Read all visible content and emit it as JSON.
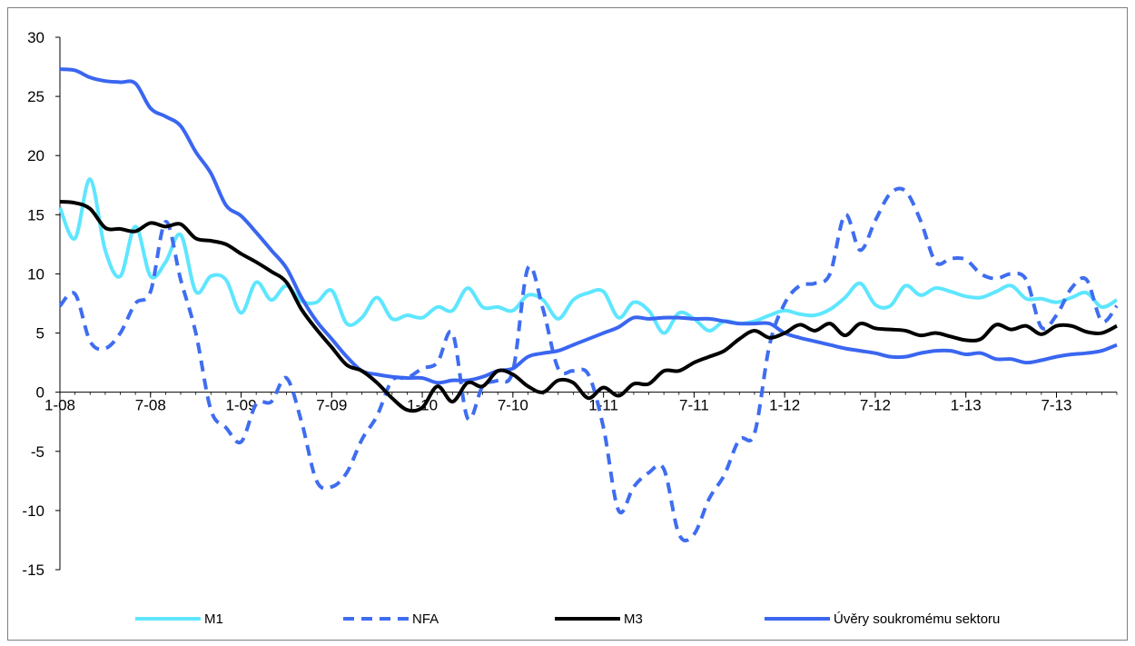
{
  "chart_data": {
    "type": "line",
    "title": "",
    "xlabel": "",
    "ylabel": "",
    "ylim": [
      -15,
      30
    ],
    "yticks": [
      -15,
      -10,
      -5,
      0,
      5,
      10,
      15,
      20,
      25,
      30
    ],
    "x_tick_labels": [
      "1-08",
      "7-08",
      "1-09",
      "7-09",
      "1-10",
      "7-10",
      "1-11",
      "7-11",
      "1-12",
      "7-12",
      "1-13",
      "7-13"
    ],
    "x_tick_index": [
      0,
      6,
      12,
      18,
      24,
      30,
      36,
      42,
      48,
      54,
      60,
      66
    ],
    "n_months": 71,
    "grid": false,
    "legend_position": "bottom",
    "series": [
      {
        "name": "M1",
        "color": "#5ee6ff",
        "dash": "solid",
        "values": [
          15.6,
          13.0,
          18.0,
          12.0,
          9.8,
          14.0,
          9.8,
          11.0,
          13.3,
          8.5,
          9.8,
          9.5,
          6.7,
          9.3,
          7.8,
          9.0,
          7.7,
          7.6,
          8.6,
          5.8,
          6.3,
          8.0,
          6.2,
          6.5,
          6.3,
          7.2,
          6.9,
          8.8,
          7.2,
          7.2,
          6.9,
          8.2,
          7.8,
          6.2,
          7.8,
          8.4,
          8.5,
          6.3,
          7.6,
          6.9,
          5.0,
          6.7,
          6.2,
          5.2,
          6.0,
          5.8,
          6.0,
          6.5,
          6.9,
          6.6,
          6.5,
          7.0,
          8.0,
          9.2,
          7.4,
          7.3,
          9.0,
          8.2,
          8.8,
          8.5,
          8.1,
          8.0,
          8.5,
          9.0,
          7.9,
          7.9,
          7.6,
          8.0,
          8.4,
          7.2,
          7.8
        ]
      },
      {
        "name": "NFA",
        "color": "#3f6df0",
        "dash": "dashed",
        "values": [
          7.3,
          8.3,
          4.3,
          3.7,
          5.0,
          7.5,
          8.5,
          14.4,
          9.5,
          5.0,
          -1.5,
          -3.0,
          -4.2,
          -1.0,
          -0.8,
          1.2,
          -2.5,
          -7.5,
          -8.0,
          -6.8,
          -4.0,
          -2.0,
          1.0,
          1.2,
          2.0,
          2.5,
          5.0,
          -2.2,
          0.5,
          1.0,
          1.8,
          10.5,
          7.0,
          2.0,
          1.8,
          1.5,
          -3.0,
          -10.0,
          -8.0,
          -6.8,
          -6.5,
          -12.0,
          -12.0,
          -9.0,
          -7.0,
          -4.0,
          -3.5,
          4.0,
          7.5,
          9.0,
          9.2,
          10.0,
          15.0,
          12.0,
          14.5,
          16.8,
          17.0,
          14.5,
          11.0,
          11.3,
          11.2,
          10.0,
          9.6,
          10.0,
          9.5,
          5.5,
          6.5,
          8.8,
          9.5,
          6.0,
          7.3
        ]
      },
      {
        "name": "M3",
        "color": "#000000",
        "dash": "solid",
        "values": [
          16.1,
          16.0,
          15.5,
          13.9,
          13.8,
          13.6,
          14.3,
          14.0,
          14.2,
          13.0,
          12.8,
          12.5,
          11.7,
          11.0,
          10.2,
          9.3,
          7.0,
          5.3,
          3.8,
          2.3,
          1.8,
          0.8,
          -0.5,
          -1.5,
          -1.3,
          0.5,
          -0.8,
          0.8,
          0.5,
          1.8,
          1.5,
          0.5,
          0.0,
          1.0,
          0.8,
          -0.5,
          0.4,
          -0.3,
          0.7,
          0.7,
          1.8,
          1.8,
          2.5,
          3.0,
          3.5,
          4.5,
          5.2,
          4.6,
          5.0,
          5.7,
          5.2,
          5.8,
          4.8,
          5.8,
          5.4,
          5.3,
          5.2,
          4.8,
          5.0,
          4.7,
          4.4,
          4.5,
          5.7,
          5.3,
          5.6,
          4.9,
          5.6,
          5.6,
          5.1,
          5.0,
          5.6
        ]
      },
      {
        "name": "Úvěry soukromému sektoru",
        "color": "#3a66f0",
        "dash": "solid",
        "values": [
          27.3,
          27.2,
          26.6,
          26.3,
          26.2,
          26.1,
          24.0,
          23.3,
          22.5,
          20.3,
          18.5,
          15.8,
          14.9,
          13.5,
          12.0,
          10.5,
          8.0,
          6.0,
          4.5,
          3.0,
          1.8,
          1.5,
          1.3,
          1.2,
          1.2,
          0.8,
          1.0,
          1.0,
          1.3,
          1.8,
          2.0,
          3.0,
          3.3,
          3.5,
          4.0,
          4.5,
          5.0,
          5.5,
          6.3,
          6.2,
          6.3,
          6.3,
          6.2,
          6.2,
          6.0,
          5.8,
          5.8,
          5.8,
          5.0,
          4.6,
          4.3,
          4.0,
          3.7,
          3.5,
          3.3,
          3.0,
          3.0,
          3.3,
          3.5,
          3.5,
          3.2,
          3.3,
          2.8,
          2.8,
          2.5,
          2.7,
          3.0,
          3.2,
          3.3,
          3.5,
          4.0
        ]
      }
    ]
  }
}
